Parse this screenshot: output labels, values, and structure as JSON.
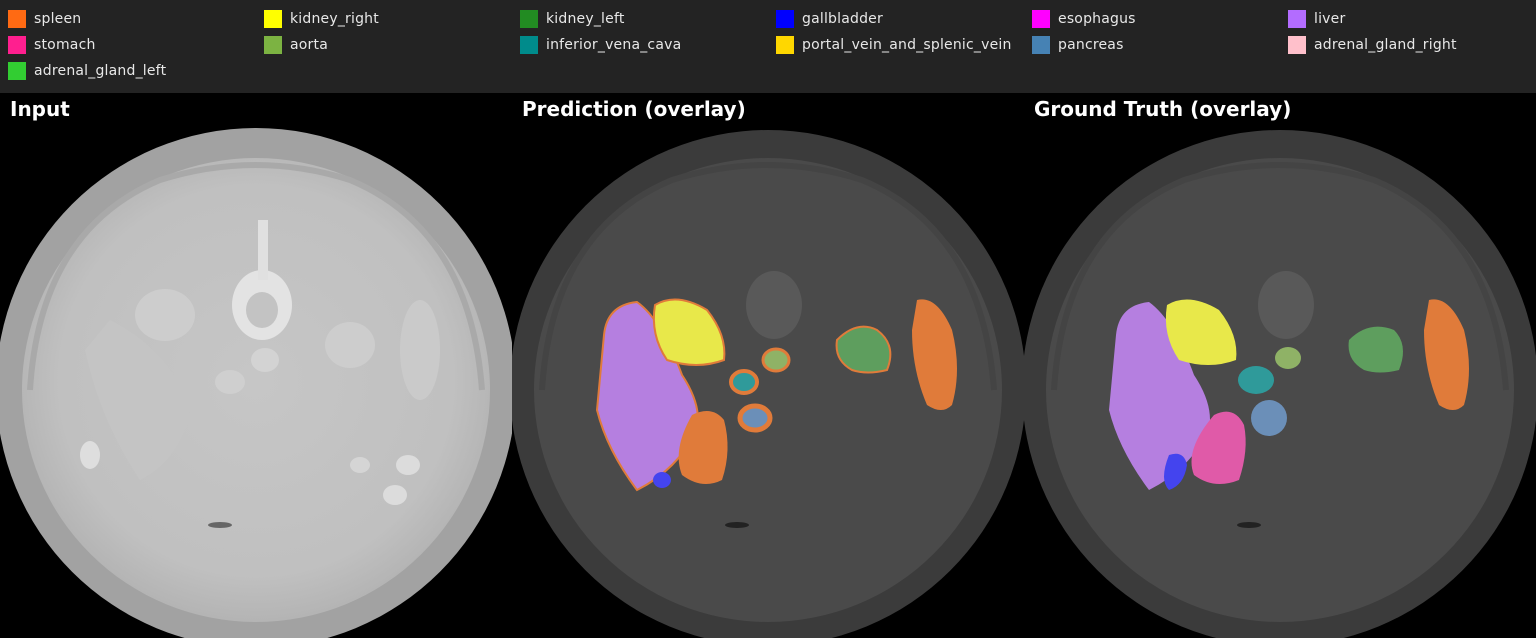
{
  "legend": [
    {
      "label": "spleen",
      "color": "#ff6a13"
    },
    {
      "label": "kidney_right",
      "color": "#ffff00"
    },
    {
      "label": "kidney_left",
      "color": "#228b22"
    },
    {
      "label": "gallbladder",
      "color": "#0000ff"
    },
    {
      "label": "esophagus",
      "color": "#ff00ff"
    },
    {
      "label": "liver",
      "color": "#b36cff"
    },
    {
      "label": "stomach",
      "color": "#ff1f8f"
    },
    {
      "label": "aorta",
      "color": "#7cb342"
    },
    {
      "label": "inferior_vena_cava",
      "color": "#008b8b"
    },
    {
      "label": "portal_vein_and_splenic_vein",
      "color": "#ffd700"
    },
    {
      "label": "pancreas",
      "color": "#4682b4"
    },
    {
      "label": "adrenal_gland_right",
      "color": "#ffc0cb"
    },
    {
      "label": "adrenal_gland_left",
      "color": "#32cd32"
    }
  ],
  "panels": {
    "input_title": "Input",
    "prediction_title": "Prediction (overlay)",
    "ground_truth_title": "Ground Truth (overlay)"
  }
}
